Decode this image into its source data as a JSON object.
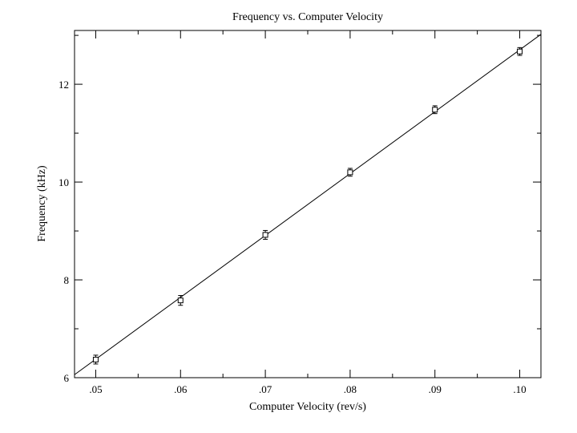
{
  "chart_data": {
    "type": "scatter",
    "title": "Frequency vs. Computer Velocity",
    "xlabel": "Computer Velocity (rev/s)",
    "ylabel": "Frequency (kHz)",
    "xlim": [
      0.0475,
      0.1025
    ],
    "ylim": [
      6,
      13.1
    ],
    "x_ticks": [
      {
        "value": 0.05,
        "label": ".05"
      },
      {
        "value": 0.06,
        "label": ".06"
      },
      {
        "value": 0.07,
        "label": ".07"
      },
      {
        "value": 0.08,
        "label": ".08"
      },
      {
        "value": 0.09,
        "label": ".09"
      },
      {
        "value": 0.1,
        "label": ".10"
      }
    ],
    "y_ticks": [
      {
        "value": 6,
        "label": "6"
      },
      {
        "value": 8,
        "label": "8"
      },
      {
        "value": 10,
        "label": "10"
      },
      {
        "value": 12,
        "label": "12"
      }
    ],
    "x_minor_ticks": [
      0.055,
      0.065,
      0.075,
      0.085,
      0.095
    ],
    "y_minor_ticks": [
      7,
      9,
      11,
      13
    ],
    "points": [
      {
        "x": 0.05,
        "y": 6.37,
        "err": 0.09
      },
      {
        "x": 0.06,
        "y": 7.58,
        "err": 0.1
      },
      {
        "x": 0.07,
        "y": 8.92,
        "err": 0.09
      },
      {
        "x": 0.08,
        "y": 10.2,
        "err": 0.08
      },
      {
        "x": 0.09,
        "y": 11.48,
        "err": 0.08
      },
      {
        "x": 0.1,
        "y": 12.67,
        "err": 0.08
      }
    ],
    "fit_line": {
      "slope": 126.55,
      "intercept": 0.05
    },
    "grid": false,
    "legend": "none"
  }
}
